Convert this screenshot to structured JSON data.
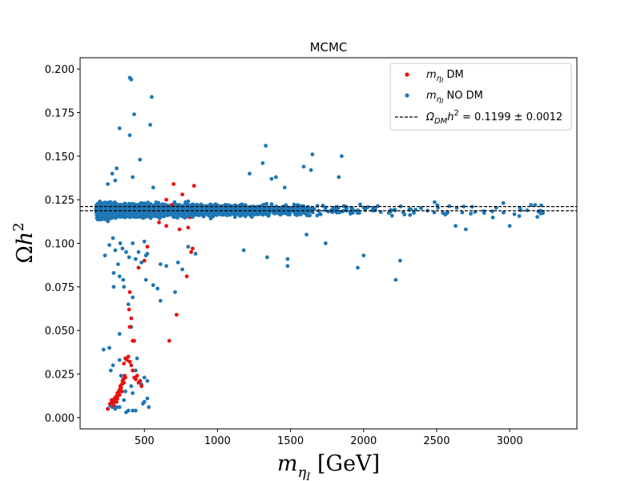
{
  "chart_data": {
    "type": "scatter",
    "title": "MCMC",
    "xlabel": {
      "base": "m",
      "sub": "η",
      "subsub": "I",
      "unit": " [GeV]"
    },
    "ylabel": {
      "base": "Ω",
      "mid": "h",
      "sup": "2"
    },
    "xlim": [
      60,
      3460
    ],
    "ylim": [
      -0.0065,
      0.2065
    ],
    "xticks": [
      500,
      1000,
      1500,
      2000,
      2500,
      3000
    ],
    "xtick_labels": [
      "500",
      "1000",
      "1500",
      "2000",
      "2500",
      "3000"
    ],
    "yticks": [
      0.0,
      0.025,
      0.05,
      0.075,
      0.1,
      0.125,
      0.15,
      0.175,
      0.2
    ],
    "ytick_labels": [
      "0.000",
      "0.025",
      "0.050",
      "0.075",
      "0.100",
      "0.125",
      "0.150",
      "0.175",
      "0.200"
    ],
    "hlines": [
      0.1187,
      0.1211
    ],
    "legend": {
      "placement": "top-right",
      "entries": [
        {
          "label_base": "m",
          "label_sub": "η",
          "label_subsub": "I",
          "label_rest": " DM",
          "color": "#e8120c",
          "marker": "dot"
        },
        {
          "label_base": "m",
          "label_sub": "η",
          "label_subsub": "I",
          "label_rest": " NO DM",
          "color": "#1f77b4",
          "marker": "dot"
        },
        {
          "label_omega": "Ω",
          "label_sub": "DM",
          "label_h": "h",
          "label_sup": "2",
          "label_rest": " = 0.1199 ± 0.0012",
          "color": "#000000",
          "marker": "dashed-line"
        }
      ]
    },
    "series": [
      {
        "name": "m_ηI NO DM",
        "color": "#1f77b4",
        "band": {
          "x_min": 170,
          "x_max": 3300,
          "y_min": 0.105,
          "y_max": 0.133,
          "density": "dense below 1500 GeV, sparse above"
        },
        "outliers": [
          [
            400,
            0.195
          ],
          [
            410,
            0.194
          ],
          [
            550,
            0.184
          ],
          [
            430,
            0.174
          ],
          [
            330,
            0.166
          ],
          [
            400,
            0.162
          ],
          [
            540,
            0.168
          ],
          [
            1330,
            0.156
          ],
          [
            1650,
            0.151
          ],
          [
            1850,
            0.15
          ],
          [
            1590,
            0.144
          ],
          [
            1310,
            0.146
          ],
          [
            1640,
            0.142
          ],
          [
            1830,
            0.138
          ],
          [
            1220,
            0.14
          ],
          [
            1370,
            0.137
          ],
          [
            1400,
            0.138
          ],
          [
            1460,
            0.132
          ],
          [
            310,
            0.143
          ],
          [
            280,
            0.14
          ],
          [
            250,
            0.134
          ],
          [
            300,
            0.136
          ],
          [
            420,
            0.138
          ],
          [
            470,
            0.148
          ],
          [
            560,
            0.132
          ],
          [
            1340,
            0.092
          ],
          [
            1480,
            0.091
          ],
          [
            1480,
            0.087
          ],
          [
            1960,
            0.086
          ],
          [
            2220,
            0.079
          ],
          [
            2000,
            0.093
          ],
          [
            2250,
            0.09
          ],
          [
            2630,
            0.11
          ],
          [
            2700,
            0.108
          ],
          [
            3000,
            0.11
          ],
          [
            1740,
            0.1
          ],
          [
            1610,
            0.105
          ],
          [
            1180,
            0.096
          ],
          [
            230,
            0.093
          ],
          [
            260,
            0.099
          ],
          [
            285,
            0.103
          ],
          [
            300,
            0.096
          ],
          [
            320,
            0.088
          ],
          [
            335,
            0.1
          ],
          [
            350,
            0.097
          ],
          [
            375,
            0.095
          ],
          [
            395,
            0.092
          ],
          [
            420,
            0.1
          ],
          [
            440,
            0.091
          ],
          [
            460,
            0.095
          ],
          [
            480,
            0.089
          ],
          [
            500,
            0.101
          ],
          [
            510,
            0.093
          ],
          [
            290,
            0.083
          ],
          [
            330,
            0.081
          ],
          [
            355,
            0.079
          ],
          [
            290,
            0.075
          ],
          [
            360,
            0.075
          ],
          [
            460,
            0.086
          ],
          [
            510,
            0.079
          ],
          [
            560,
            0.076
          ],
          [
            590,
            0.074
          ],
          [
            610,
            0.088
          ],
          [
            610,
            0.067
          ],
          [
            650,
            0.087
          ],
          [
            710,
            0.072
          ],
          [
            730,
            0.089
          ],
          [
            760,
            0.085
          ],
          [
            800,
            0.098
          ],
          [
            850,
            0.094
          ],
          [
            520,
            0.094
          ],
          [
            420,
            0.069
          ],
          [
            390,
            0.065
          ],
          [
            410,
            0.052
          ],
          [
            330,
            0.048
          ],
          [
            260,
            0.04
          ],
          [
            220,
            0.039
          ],
          [
            285,
            0.03
          ],
          [
            270,
            0.027
          ],
          [
            330,
            0.033
          ],
          [
            340,
            0.024
          ],
          [
            450,
            0.034
          ],
          [
            440,
            0.027
          ],
          [
            470,
            0.021
          ],
          [
            500,
            0.023
          ],
          [
            520,
            0.021
          ],
          [
            410,
            0.018
          ],
          [
            370,
            0.015
          ],
          [
            360,
            0.01
          ],
          [
            420,
            0.014
          ],
          [
            480,
            0.019
          ],
          [
            520,
            0.011
          ],
          [
            500,
            0.009
          ],
          [
            490,
            0.008
          ],
          [
            530,
            0.006
          ],
          [
            300,
            0.005
          ],
          [
            290,
            0.008
          ],
          [
            310,
            0.006
          ],
          [
            330,
            0.006
          ],
          [
            265,
            0.007
          ],
          [
            280,
            0.006
          ],
          [
            390,
            0.004
          ],
          [
            420,
            0.004
          ],
          [
            440,
            0.004
          ],
          [
            375,
            0.003
          ],
          [
            250,
            0.005
          ]
        ]
      },
      {
        "name": "m_ηI DM",
        "color": "#e8120c",
        "points": [
          [
            250,
            0.005
          ],
          [
            265,
            0.008
          ],
          [
            275,
            0.01
          ],
          [
            285,
            0.009
          ],
          [
            295,
            0.011
          ],
          [
            305,
            0.012
          ],
          [
            310,
            0.009
          ],
          [
            315,
            0.014
          ],
          [
            320,
            0.013
          ],
          [
            325,
            0.015
          ],
          [
            330,
            0.016
          ],
          [
            335,
            0.018
          ],
          [
            340,
            0.017
          ],
          [
            345,
            0.019
          ],
          [
            350,
            0.021
          ],
          [
            355,
            0.022
          ],
          [
            360,
            0.02
          ],
          [
            365,
            0.024
          ],
          [
            370,
            0.023
          ],
          [
            300,
            0.01
          ],
          [
            290,
            0.007
          ],
          [
            280,
            0.009
          ],
          [
            315,
            0.011
          ],
          [
            330,
            0.013
          ],
          [
            345,
            0.015
          ],
          [
            360,
            0.031
          ],
          [
            370,
            0.034
          ],
          [
            380,
            0.033
          ],
          [
            390,
            0.035
          ],
          [
            400,
            0.032
          ],
          [
            410,
            0.03
          ],
          [
            420,
            0.027
          ],
          [
            430,
            0.023
          ],
          [
            440,
            0.022
          ],
          [
            450,
            0.024
          ],
          [
            460,
            0.02
          ],
          [
            470,
            0.021
          ],
          [
            480,
            0.018
          ],
          [
            395,
            0.062
          ],
          [
            400,
            0.052
          ],
          [
            410,
            0.057
          ],
          [
            420,
            0.044
          ],
          [
            430,
            0.044
          ],
          [
            400,
            0.072
          ],
          [
            460,
            0.086
          ],
          [
            500,
            0.09
          ],
          [
            520,
            0.098
          ],
          [
            600,
            0.112
          ],
          [
            650,
            0.11
          ],
          [
            670,
            0.044
          ],
          [
            720,
            0.059
          ],
          [
            700,
            0.134
          ],
          [
            740,
            0.108
          ],
          [
            760,
            0.128
          ],
          [
            790,
            0.081
          ],
          [
            800,
            0.109
          ],
          [
            820,
            0.095
          ],
          [
            830,
            0.097
          ],
          [
            840,
            0.133
          ],
          [
            650,
            0.125
          ],
          [
            690,
            0.122
          ],
          [
            780,
            0.119
          ],
          [
            810,
            0.115
          ],
          [
            560,
            0.118
          ],
          [
            620,
            0.121
          ]
        ]
      }
    ]
  }
}
